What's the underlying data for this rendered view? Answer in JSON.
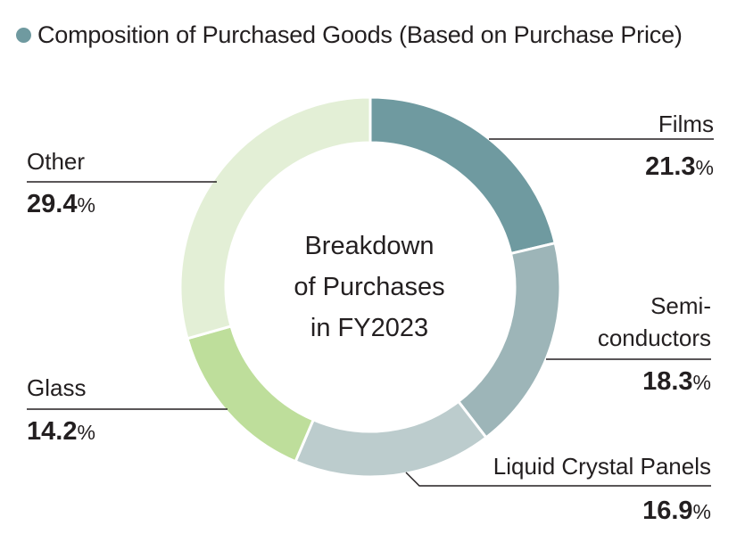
{
  "title": {
    "text": "Composition of Purchased Goods (Based on Purchase Price)",
    "bullet_color": "#6f9aa0"
  },
  "chart_data": {
    "type": "pie",
    "variant": "donut",
    "title": "Composition of Purchased Goods (Based on Purchase Price)",
    "center_label": [
      "Breakdown",
      "of Purchases",
      "in FY2023"
    ],
    "unit": "%",
    "slices": [
      {
        "label_lines": [
          "Films"
        ],
        "value": 21.3,
        "color": "#6f9aa0"
      },
      {
        "label_lines": [
          "Semi-",
          "conductors"
        ],
        "value": 18.3,
        "color": "#9db5b8"
      },
      {
        "label_lines": [
          "Liquid Crystal Panels"
        ],
        "value": 16.9,
        "color": "#bccccd"
      },
      {
        "label_lines": [
          "Glass"
        ],
        "value": 14.2,
        "color": "#bede9b"
      },
      {
        "label_lines": [
          "Other"
        ],
        "value": 29.4,
        "color": "#e3efd6"
      }
    ]
  }
}
